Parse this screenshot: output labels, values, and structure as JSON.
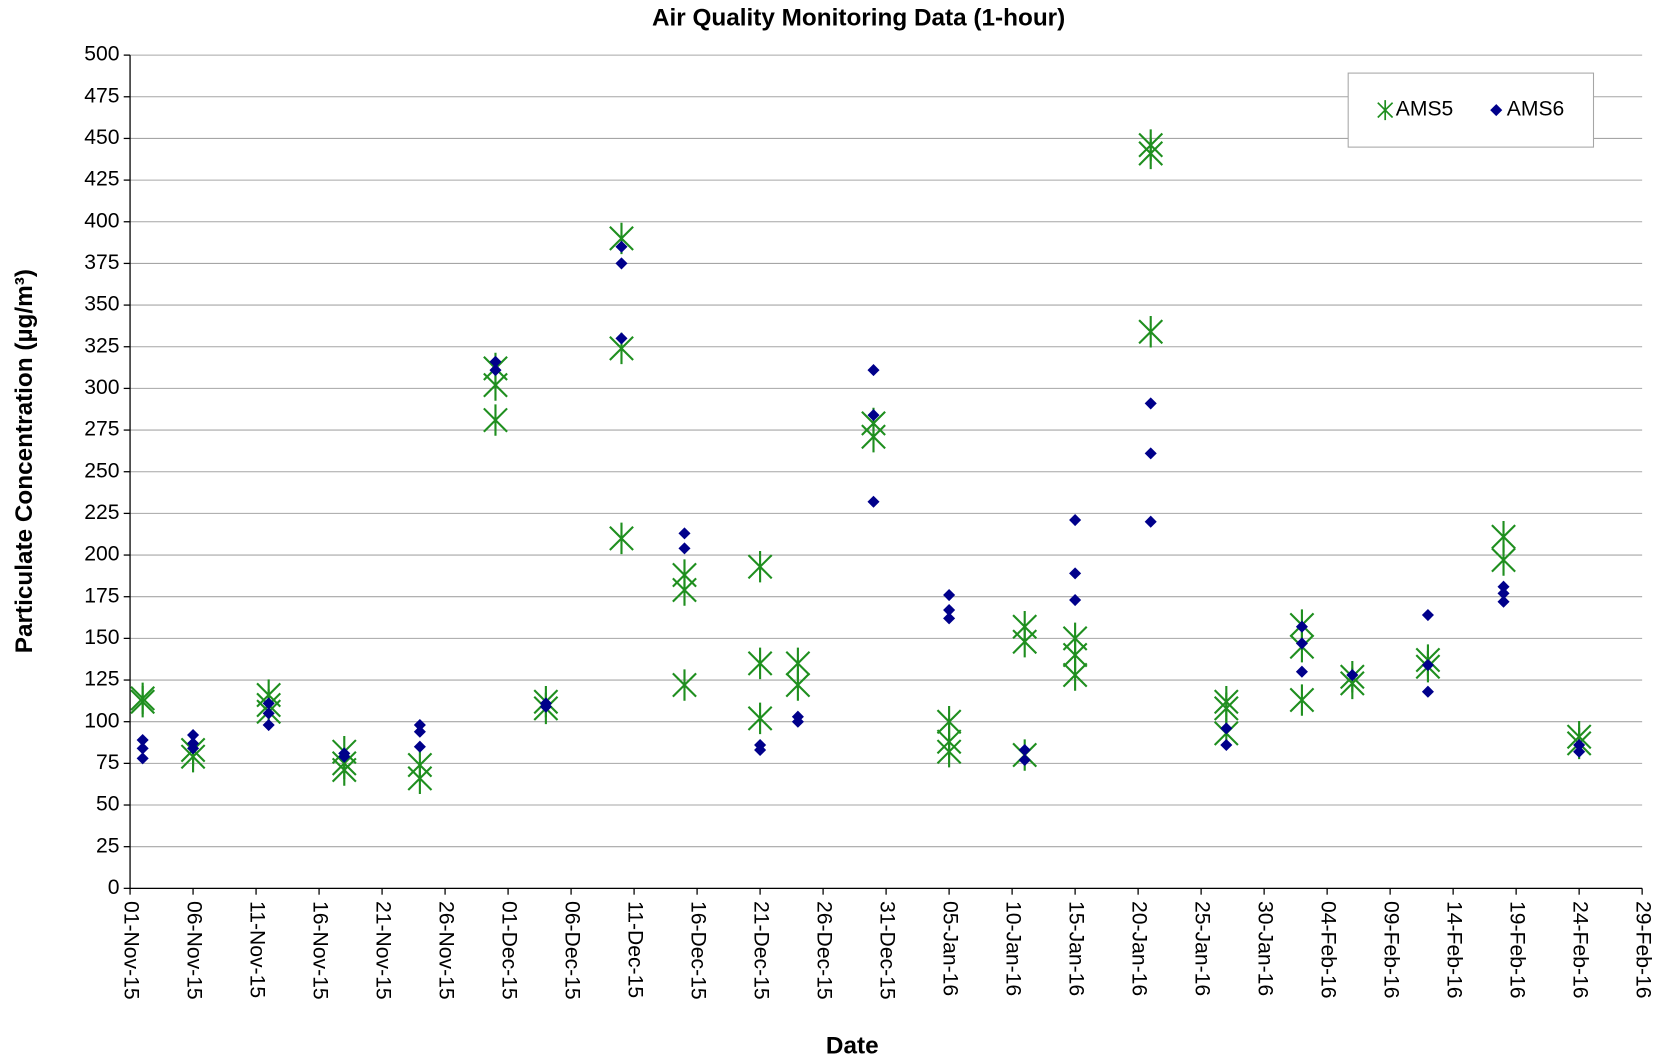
{
  "chart_data": {
    "type": "scatter",
    "title": "Air Quality Monitoring Data (1-hour)",
    "x_label": "Date",
    "y_label": "Particulate Concentration (µg/m³)",
    "xlim": [
      "2015-11-01",
      "2016-02-29"
    ],
    "xticks": [
      {
        "value": "2015-11-01",
        "label": "01-Nov-15"
      },
      {
        "value": "2015-11-06",
        "label": "06-Nov-15"
      },
      {
        "value": "2015-11-11",
        "label": "11-Nov-15"
      },
      {
        "value": "2015-11-16",
        "label": "16-Nov-15"
      },
      {
        "value": "2015-11-21",
        "label": "21-Nov-15"
      },
      {
        "value": "2015-11-26",
        "label": "26-Nov-15"
      },
      {
        "value": "2015-12-01",
        "label": "01-Dec-15"
      },
      {
        "value": "2015-12-06",
        "label": "06-Dec-15"
      },
      {
        "value": "2015-12-11",
        "label": "11-Dec-15"
      },
      {
        "value": "2015-12-16",
        "label": "16-Dec-15"
      },
      {
        "value": "2015-12-21",
        "label": "21-Dec-15"
      },
      {
        "value": "2015-12-26",
        "label": "26-Dec-15"
      },
      {
        "value": "2015-12-31",
        "label": "31-Dec-15"
      },
      {
        "value": "2016-01-05",
        "label": "05-Jan-16"
      },
      {
        "value": "2016-01-10",
        "label": "10-Jan-16"
      },
      {
        "value": "2016-01-15",
        "label": "15-Jan-16"
      },
      {
        "value": "2016-01-20",
        "label": "20-Jan-16"
      },
      {
        "value": "2016-01-25",
        "label": "25-Jan-16"
      },
      {
        "value": "2016-01-30",
        "label": "30-Jan-16"
      },
      {
        "value": "2016-02-04",
        "label": "04-Feb-16"
      },
      {
        "value": "2016-02-09",
        "label": "09-Feb-16"
      },
      {
        "value": "2016-02-14",
        "label": "14-Feb-16"
      },
      {
        "value": "2016-02-19",
        "label": "19-Feb-16"
      },
      {
        "value": "2016-02-24",
        "label": "24-Feb-16"
      },
      {
        "value": "2016-02-29",
        "label": "29-Feb-16"
      }
    ],
    "ylim": [
      0,
      500
    ],
    "yticks": [
      0,
      25,
      50,
      75,
      100,
      125,
      150,
      175,
      200,
      225,
      250,
      275,
      300,
      325,
      350,
      375,
      400,
      425,
      450,
      475,
      500
    ],
    "grid": true,
    "legend": "upper right",
    "series": [
      {
        "name": "AMS5",
        "color": "#1f8f1f",
        "marker": "asterisk",
        "x": [
          "2015-11-02",
          "2015-11-02",
          "2015-11-06",
          "2015-11-06",
          "2015-11-12",
          "2015-11-12",
          "2015-11-12",
          "2015-11-18",
          "2015-11-18",
          "2015-11-18",
          "2015-11-24",
          "2015-11-24",
          "2015-11-30",
          "2015-11-30",
          "2015-11-30",
          "2015-12-04",
          "2015-12-04",
          "2015-12-10",
          "2015-12-10",
          "2015-12-10",
          "2015-12-15",
          "2015-12-15",
          "2015-12-15",
          "2015-12-21",
          "2015-12-21",
          "2015-12-21",
          "2015-12-24",
          "2015-12-24",
          "2015-12-30",
          "2015-12-30",
          "2016-01-05",
          "2016-01-05",
          "2016-01-05",
          "2016-01-11",
          "2016-01-11",
          "2016-01-11",
          "2016-01-15",
          "2016-01-15",
          "2016-01-15",
          "2016-01-21",
          "2016-01-21",
          "2016-01-21",
          "2016-01-27",
          "2016-01-27",
          "2016-01-27",
          "2016-02-02",
          "2016-02-02",
          "2016-02-02",
          "2016-02-06",
          "2016-02-06",
          "2016-02-12",
          "2016-02-12",
          "2016-02-18",
          "2016-02-18",
          "2016-02-24",
          "2016-02-24"
        ],
        "values": [
          114,
          112,
          83,
          79,
          116,
          110,
          106,
          82,
          75,
          71,
          74,
          66,
          312,
          302,
          281,
          112,
          108,
          390,
          324,
          210,
          188,
          179,
          122,
          193,
          135,
          102,
          135,
          122,
          279,
          271,
          100,
          88,
          82,
          157,
          148,
          80,
          150,
          140,
          128,
          446,
          441,
          334,
          112,
          108,
          93,
          158,
          145,
          113,
          127,
          123,
          137,
          133,
          211,
          197,
          91,
          87
        ]
      },
      {
        "name": "AMS6",
        "color": "#00008b",
        "marker": "diamond",
        "x": [
          "2015-11-02",
          "2015-11-02",
          "2015-11-02",
          "2015-11-06",
          "2015-11-06",
          "2015-11-06",
          "2015-11-12",
          "2015-11-12",
          "2015-11-12",
          "2015-11-18",
          "2015-11-18",
          "2015-11-24",
          "2015-11-24",
          "2015-11-24",
          "2015-11-30",
          "2015-11-30",
          "2015-12-04",
          "2015-12-04",
          "2015-12-10",
          "2015-12-10",
          "2015-12-10",
          "2015-12-15",
          "2015-12-15",
          "2015-12-21",
          "2015-12-21",
          "2015-12-24",
          "2015-12-24",
          "2015-12-30",
          "2015-12-30",
          "2015-12-30",
          "2016-01-05",
          "2016-01-05",
          "2016-01-05",
          "2016-01-11",
          "2016-01-11",
          "2016-01-15",
          "2016-01-15",
          "2016-01-15",
          "2016-01-21",
          "2016-01-21",
          "2016-01-21",
          "2016-01-27",
          "2016-01-27",
          "2016-02-02",
          "2016-02-02",
          "2016-02-02",
          "2016-02-06",
          "2016-02-12",
          "2016-02-12",
          "2016-02-12",
          "2016-02-18",
          "2016-02-18",
          "2016-02-18",
          "2016-02-24",
          "2016-02-24"
        ],
        "values": [
          89,
          84,
          78,
          92,
          87,
          84,
          111,
          105,
          98,
          81,
          79,
          98,
          94,
          85,
          316,
          311,
          111,
          109,
          385,
          375,
          330,
          213,
          204,
          86,
          83,
          103,
          100,
          311,
          284,
          232,
          176,
          167,
          162,
          83,
          77,
          221,
          189,
          173,
          291,
          261,
          220,
          96,
          86,
          157,
          147,
          130,
          128,
          164,
          134,
          118,
          181,
          177,
          172,
          86,
          82
        ]
      }
    ]
  }
}
